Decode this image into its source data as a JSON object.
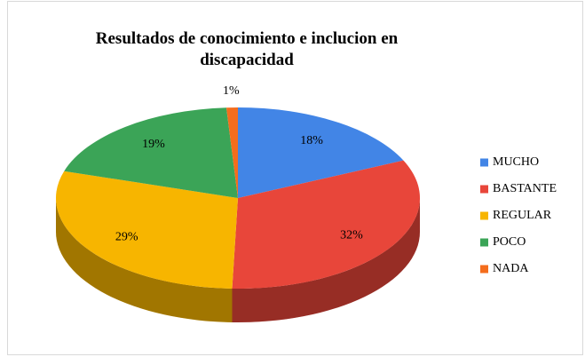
{
  "chart_data": {
    "type": "pie",
    "title": "Resultados de conocimiento e inclucion en discapacidad",
    "categories": [
      "MUCHO",
      "BASTANTE",
      "REGULAR",
      "POCO",
      "NADA"
    ],
    "values": [
      18,
      32,
      29,
      19,
      1
    ],
    "value_labels": [
      "18%",
      "32%",
      "29%",
      "19%",
      "1%"
    ],
    "colors": [
      "#4285e6",
      "#e8463a",
      "#f7b500",
      "#3ba457",
      "#f46d1d"
    ],
    "legend": "right"
  }
}
